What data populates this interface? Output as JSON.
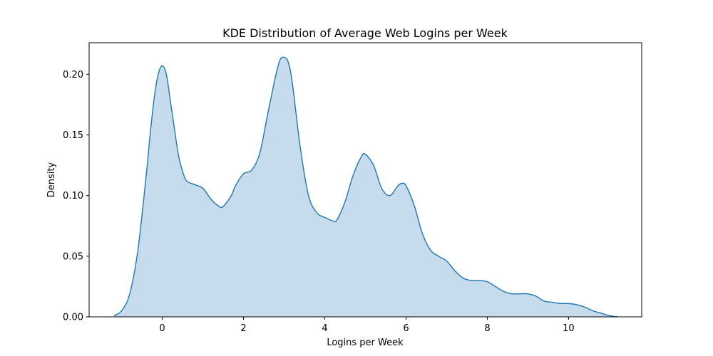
{
  "chart_data": {
    "type": "area",
    "title": "KDE Distribution of Average Web Logins per Week",
    "xlabel": "Logins per Week",
    "ylabel": "Density",
    "xlim": [
      -1.8,
      11.8
    ],
    "ylim": [
      0,
      0.226
    ],
    "x_ticks": [
      0,
      2,
      4,
      6,
      8,
      10
    ],
    "y_ticks": [
      0.0,
      0.05,
      0.1,
      0.15,
      0.2
    ],
    "y_tick_labels": [
      "0.00",
      "0.05",
      "0.10",
      "0.15",
      "0.20"
    ],
    "grid": false,
    "legend": "none",
    "line_color": "#1f77b4",
    "fill_color": "#c6dbec",
    "series": [
      {
        "x": [
          -1.19,
          -1.0,
          -0.8,
          -0.6,
          -0.4,
          -0.3,
          -0.2,
          -0.1,
          0.0,
          0.1,
          0.2,
          0.3,
          0.4,
          0.5,
          0.6,
          0.8,
          1.0,
          1.2,
          1.4,
          1.5,
          1.7,
          1.8,
          2.0,
          2.2,
          2.4,
          2.6,
          2.8,
          2.9,
          3.0,
          3.1,
          3.2,
          3.4,
          3.6,
          3.8,
          4.0,
          4.2,
          4.3,
          4.5,
          4.7,
          4.9,
          5.0,
          5.2,
          5.4,
          5.6,
          5.8,
          5.9,
          6.0,
          6.2,
          6.4,
          6.6,
          6.8,
          7.0,
          7.2,
          7.4,
          7.6,
          7.8,
          8.0,
          8.2,
          8.4,
          8.6,
          8.8,
          9.0,
          9.2,
          9.4,
          9.6,
          9.8,
          10.0,
          10.2,
          10.4,
          10.6,
          10.8,
          11.0,
          11.2
        ],
        "y": [
          0.001,
          0.005,
          0.019,
          0.055,
          0.115,
          0.15,
          0.18,
          0.2,
          0.207,
          0.2,
          0.178,
          0.155,
          0.133,
          0.12,
          0.112,
          0.109,
          0.106,
          0.097,
          0.091,
          0.091,
          0.1,
          0.108,
          0.118,
          0.121,
          0.135,
          0.168,
          0.2,
          0.212,
          0.214,
          0.21,
          0.193,
          0.139,
          0.1,
          0.086,
          0.082,
          0.079,
          0.08,
          0.095,
          0.117,
          0.132,
          0.134,
          0.125,
          0.106,
          0.1,
          0.108,
          0.11,
          0.108,
          0.092,
          0.069,
          0.055,
          0.05,
          0.046,
          0.038,
          0.032,
          0.03,
          0.03,
          0.029,
          0.025,
          0.021,
          0.019,
          0.019,
          0.019,
          0.017,
          0.013,
          0.012,
          0.011,
          0.011,
          0.01,
          0.008,
          0.005,
          0.003,
          0.001,
          0.0
        ]
      }
    ]
  }
}
